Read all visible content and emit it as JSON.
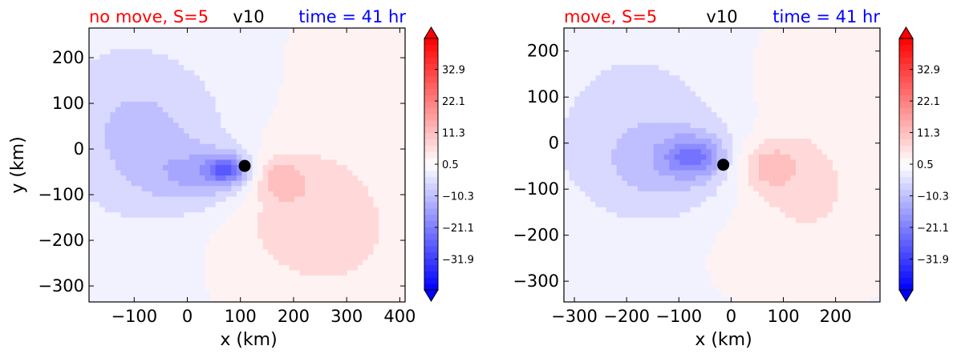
{
  "colors": {
    "red": "#ff0000",
    "blue": "#0000ff",
    "black": "#000000",
    "marker": "#000000"
  },
  "chart_data": [
    {
      "type": "heatmap",
      "title_left": "no move, S=5",
      "title_center": "v10",
      "title_right": "time = 41 hr",
      "xlabel": "x (km)",
      "ylabel": "y (km)",
      "xlim": [
        -185,
        410
      ],
      "ylim": [
        -335,
        265
      ],
      "xticks": [
        -100,
        0,
        100,
        200,
        300,
        400
      ],
      "xtick_labels": [
        "−100",
        "0",
        "100",
        "200",
        "300",
        "400"
      ],
      "yticks": [
        200,
        100,
        0,
        -100,
        -200,
        -300
      ],
      "ytick_labels": [
        "200",
        "100",
        "0",
        "−100",
        "−200",
        "−300"
      ],
      "marker": {
        "x": 108,
        "y": -37
      },
      "colorbar": {
        "range": [
          -42.5,
          43.5
        ],
        "ticks": [
          32.9,
          22.1,
          11.3,
          0.5,
          -10.3,
          -21.1,
          -31.9
        ],
        "tick_labels": [
          "32.9",
          "22.1",
          "11.3",
          "0.5",
          "−10.3",
          "−21.1",
          "−31.9"
        ],
        "extend": "both"
      },
      "field": {
        "blobs": [
          {
            "x": 75,
            "y": -45,
            "sx": 28,
            "sy": 22,
            "amp": -18
          },
          {
            "x": 40,
            "y": -60,
            "sx": 70,
            "sy": 45,
            "amp": -10
          },
          {
            "x": -40,
            "y": -10,
            "sx": 120,
            "sy": 120,
            "amp": -6
          },
          {
            "x": -120,
            "y": 80,
            "sx": 110,
            "sy": 140,
            "amp": -5
          },
          {
            "x": 170,
            "y": -65,
            "sx": 35,
            "sy": 32,
            "amp": 9
          },
          {
            "x": 200,
            "y": -100,
            "sx": 120,
            "sy": 110,
            "amp": 6
          },
          {
            "x": 280,
            "y": -220,
            "sx": 120,
            "sy": 110,
            "amp": 4
          },
          {
            "x": 330,
            "y": 180,
            "sx": 100,
            "sy": 100,
            "amp": 2
          }
        ]
      }
    },
    {
      "type": "heatmap",
      "title_left": "move, S=5",
      "title_center": "v10",
      "title_right": "time = 41 hr",
      "xlabel": "x (km)",
      "ylabel": "",
      "xlim": [
        -320,
        285
      ],
      "ylim": [
        -345,
        250
      ],
      "xticks": [
        -300,
        -200,
        -100,
        0,
        100,
        200
      ],
      "xtick_labels": [
        "−300",
        "−200",
        "−100",
        "0",
        "100",
        "200"
      ],
      "yticks": [
        200,
        100,
        0,
        -100,
        -200,
        -300
      ],
      "ytick_labels": [
        "200",
        "100",
        "0",
        "−100",
        "−200",
        "−300"
      ],
      "marker": {
        "x": -15,
        "y": -47
      },
      "colorbar": {
        "range": [
          -42.5,
          43.5
        ],
        "ticks": [
          32.9,
          22.1,
          11.3,
          0.5,
          -10.3,
          -21.1,
          -31.9
        ],
        "tick_labels": [
          "32.9",
          "22.1",
          "11.3",
          "0.5",
          "−10.3",
          "−21.1",
          "−31.9"
        ],
        "extend": "both"
      },
      "field": {
        "blobs": [
          {
            "x": -70,
            "y": -30,
            "sx": 40,
            "sy": 30,
            "amp": -15
          },
          {
            "x": -100,
            "y": -50,
            "sx": 110,
            "sy": 80,
            "amp": -8
          },
          {
            "x": -180,
            "y": 50,
            "sx": 150,
            "sy": 160,
            "amp": -5
          },
          {
            "x": 70,
            "y": -50,
            "sx": 45,
            "sy": 40,
            "amp": 10
          },
          {
            "x": 120,
            "y": -110,
            "sx": 130,
            "sy": 120,
            "amp": 6
          },
          {
            "x": 180,
            "y": 140,
            "sx": 120,
            "sy": 100,
            "amp": 3
          }
        ]
      }
    }
  ]
}
